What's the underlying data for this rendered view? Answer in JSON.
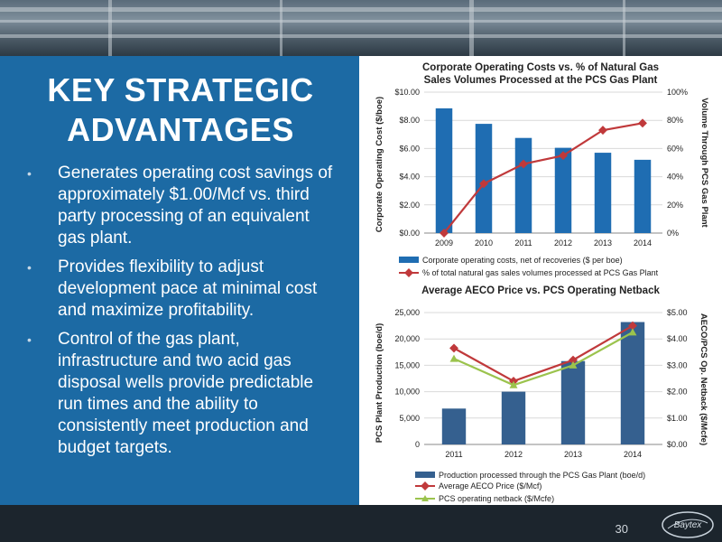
{
  "slide": {
    "title_line1": "KEY STRATEGIC",
    "title_line2": "ADVANTAGES",
    "bullets": [
      "Generates operating cost savings of approximately $1.00/Mcf vs. third party processing of an equivalent gas plant.",
      "Provides flexibility to adjust development pace at minimal cost and maximize profitability.",
      "Control of the gas plant, infrastructure and two acid gas disposal wells provide predictable run times and the ability to consistently meet production and budget targets."
    ],
    "page_number": "30",
    "logo_text": "Baytex"
  },
  "colors": {
    "panel_blue": "#1c6aa4",
    "bar_blue": "#1f6db2",
    "bar_navy": "#35608f",
    "red_line": "#c0393b",
    "green_line": "#9bc34d"
  },
  "chart_data": [
    {
      "type": "bar",
      "title_line1": "Corporate Operating Costs vs. % of Natural Gas",
      "title_line2": "Sales Volumes Processed at the PCS Gas Plant",
      "categories": [
        "2009",
        "2010",
        "2011",
        "2012",
        "2013",
        "2014"
      ],
      "ylabel": "Corporate Operating Cost ($/boe)",
      "y2label": "Volume Through PCS Gas Plant",
      "ylim": [
        0,
        10
      ],
      "y2lim": [
        0,
        100
      ],
      "yticks": [
        "$0.00",
        "$2.00",
        "$4.00",
        "$6.00",
        "$8.00",
        "$10.00"
      ],
      "y2ticks": [
        "0%",
        "20%",
        "40%",
        "60%",
        "80%",
        "100%"
      ],
      "series": [
        {
          "name": "Corporate operating costs, net of recoveries ($ per boe)",
          "kind": "bar",
          "axis": "left",
          "values": [
            8.85,
            7.75,
            6.75,
            6.05,
            5.7,
            5.2
          ]
        },
        {
          "name": "% of total natural gas sales volumes processed at PCS Gas Plant",
          "kind": "line",
          "axis": "right",
          "values": [
            0,
            35,
            49,
            55,
            73,
            78
          ]
        }
      ],
      "legend": "bottom"
    },
    {
      "type": "bar",
      "title": "Average AECO Price vs. PCS Operating Netback",
      "categories": [
        "2011",
        "2012",
        "2013",
        "2014"
      ],
      "ylabel": "PCS Plant Production (boe/d)",
      "y2label": "AECO/PCS Op. Netback ($/Mcfe)",
      "ylim": [
        0,
        25000
      ],
      "y2lim": [
        0,
        5
      ],
      "yticks": [
        "0",
        "5,000",
        "10,000",
        "15,000",
        "20,000",
        "25,000"
      ],
      "y2ticks": [
        "$0.00",
        "$1.00",
        "$2.00",
        "$3.00",
        "$4.00",
        "$5.00"
      ],
      "series": [
        {
          "name": "Production processed through the PCS Gas Plant (boe/d)",
          "kind": "bar",
          "axis": "left",
          "values": [
            6800,
            10000,
            15800,
            23200
          ]
        },
        {
          "name": "Average AECO Price ($/Mcf)",
          "kind": "line",
          "axis": "right",
          "values": [
            3.65,
            2.4,
            3.2,
            4.5
          ]
        },
        {
          "name": "PCS operating netback ($/Mcfe)",
          "kind": "line",
          "axis": "right",
          "values": [
            3.25,
            2.25,
            3.0,
            4.25
          ]
        }
      ],
      "legend": "bottom"
    }
  ]
}
